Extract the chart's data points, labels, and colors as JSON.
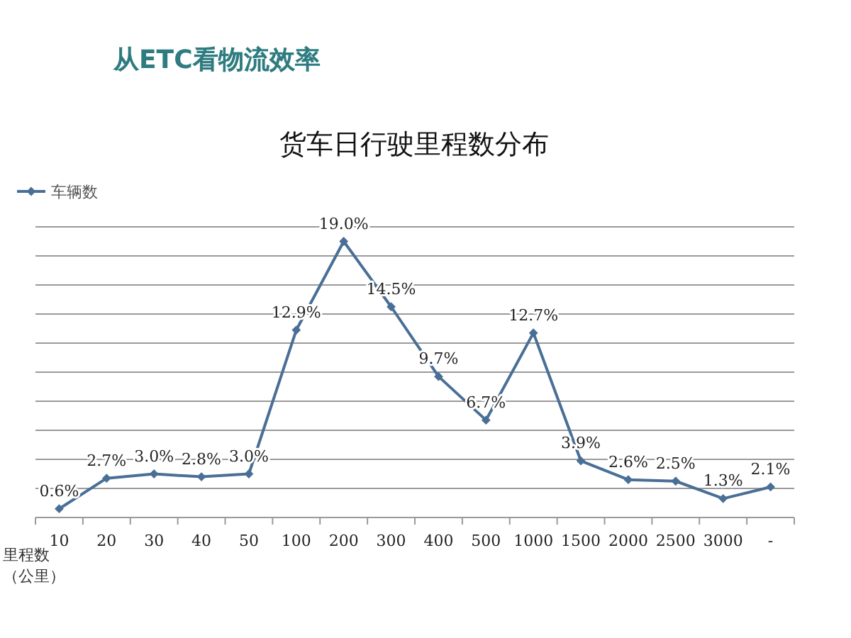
{
  "chart_data": {
    "type": "line",
    "title": "从ETC看物流效率",
    "subtitle": "货车日行驶里程数分布",
    "xlabel": "里程数（公里）",
    "categories": [
      "10",
      "20",
      "30",
      "40",
      "50",
      "100",
      "200",
      "300",
      "400",
      "500",
      "1000",
      "1500",
      "2000",
      "2500",
      "3000",
      "-"
    ],
    "series": [
      {
        "name": "车辆数",
        "color": "#4a6f96",
        "values": [
          0.6,
          2.7,
          3.0,
          2.8,
          3.0,
          12.9,
          19.0,
          14.5,
          9.7,
          6.7,
          12.7,
          3.9,
          2.6,
          2.5,
          1.3,
          2.1
        ],
        "value_labels": [
          "0.6%",
          "2.7%",
          "3.0%",
          "2.8%",
          "3.0%",
          "12.9%",
          "19.0%",
          "14.5%",
          "9.7%",
          "6.7%",
          "12.7%",
          "3.9%",
          "2.6%",
          "2.5%",
          "1.3%",
          "2.1%"
        ]
      }
    ],
    "ylim": [
      0,
      20
    ],
    "yticks": [
      {
        "value": 2,
        "label": null
      },
      {
        "value": 4,
        "label": null
      },
      {
        "value": 6,
        "label": null
      },
      {
        "value": 8,
        "label": null
      },
      {
        "value": 10,
        "label": null
      },
      {
        "value": 12,
        "label": null
      },
      {
        "value": 14,
        "label": null
      },
      {
        "value": 16,
        "label": null
      },
      {
        "value": 18,
        "label": null
      },
      {
        "value": 20,
        "label": null
      }
    ],
    "tick_labels": "x",
    "grid": "y",
    "legend": "top left",
    "marker": "diamond",
    "line_style": "solid"
  }
}
